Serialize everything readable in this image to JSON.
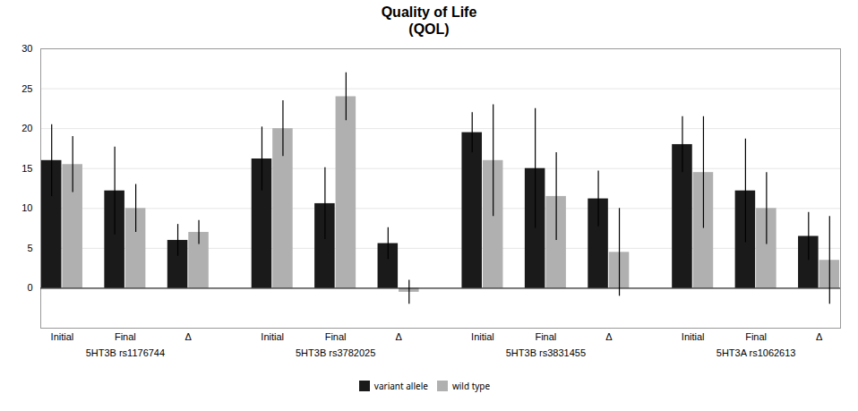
{
  "chart_data": {
    "type": "bar",
    "title": "Quality of Life\n(QOL)",
    "categories": [
      "Initial",
      "Final",
      "Δ"
    ],
    "groups": [
      "5HT3B rs1176744",
      "5HT3B rs3782025",
      "5HT3B rs3831455",
      "5HT3A rs1062613"
    ],
    "series": [
      {
        "name": "variant allele",
        "color": "#1a1a1a",
        "values": [
          [
            16.0,
            12.2,
            6.0
          ],
          [
            16.2,
            10.6,
            5.6
          ],
          [
            19.5,
            15.0,
            11.2
          ],
          [
            18.0,
            12.2,
            6.5
          ]
        ],
        "errors": [
          [
            4.5,
            5.5,
            2.0
          ],
          [
            4.0,
            4.5,
            2.0
          ],
          [
            2.5,
            7.5,
            3.5
          ],
          [
            3.5,
            6.5,
            3.0
          ]
        ]
      },
      {
        "name": "wild type",
        "color": "#b0b0b0",
        "values": [
          [
            15.5,
            10.0,
            7.0
          ],
          [
            20.0,
            24.0,
            -0.5
          ],
          [
            16.0,
            11.5,
            4.5
          ],
          [
            14.5,
            10.0,
            3.5
          ]
        ],
        "errors": [
          [
            3.5,
            3.0,
            1.5
          ],
          [
            3.5,
            3.0,
            1.5
          ],
          [
            7.0,
            5.5,
            5.5
          ],
          [
            7.0,
            4.5,
            5.5
          ]
        ]
      }
    ],
    "ylim": [
      -5,
      30
    ],
    "yticks": [
      0,
      5,
      10,
      15,
      20,
      25,
      30
    ],
    "grid": true,
    "legend": "bottom"
  }
}
